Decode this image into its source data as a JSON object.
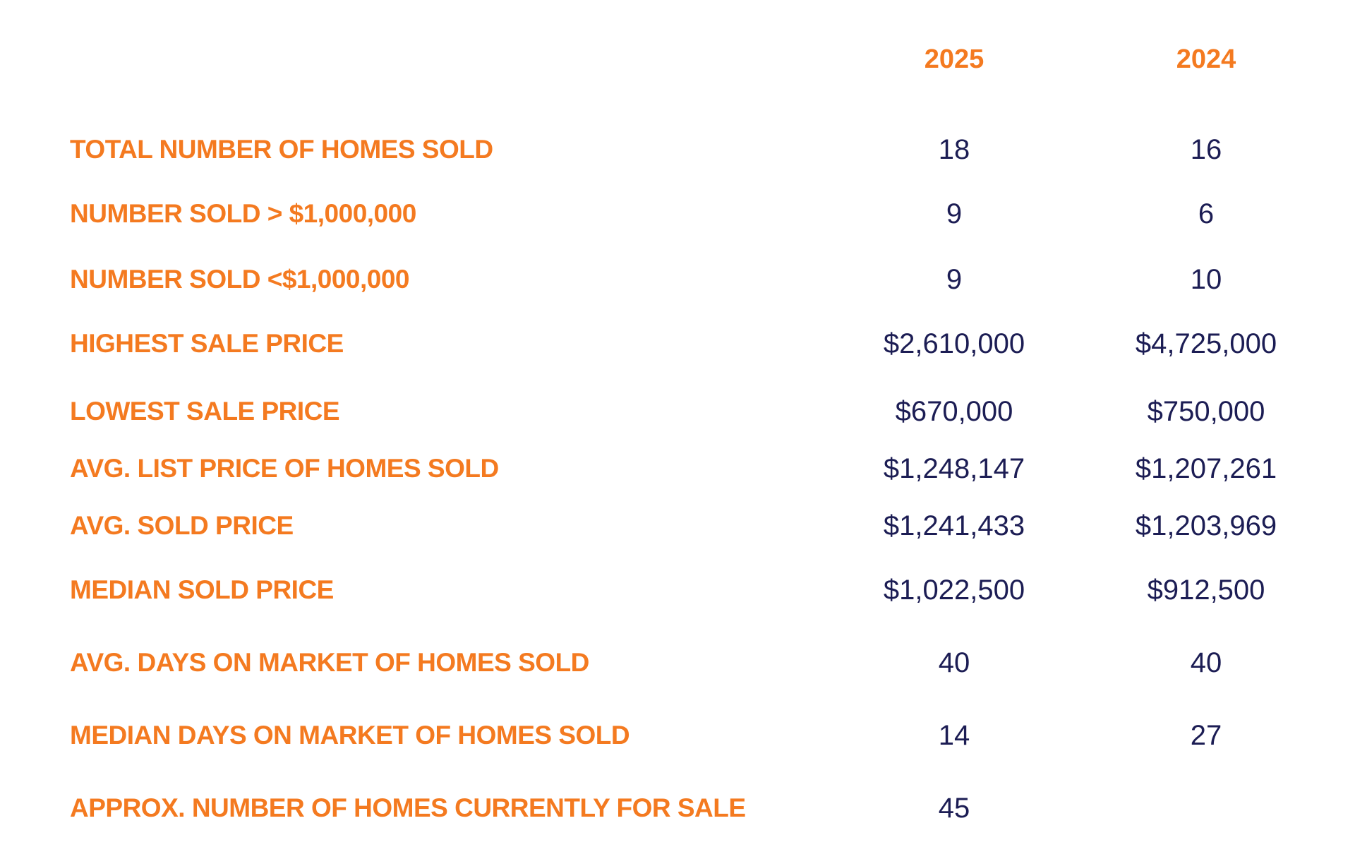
{
  "columns": {
    "year_2025": "2025",
    "year_2024": "2024"
  },
  "rows": [
    {
      "label": "TOTAL NUMBER OF HOMES SOLD",
      "v2025": "18",
      "v2024": "16"
    },
    {
      "label": "NUMBER SOLD > $1,000,000",
      "v2025": "9",
      "v2024": "6"
    },
    {
      "label": "NUMBER SOLD <$1,000,000",
      "v2025": "9",
      "v2024": "10"
    },
    {
      "label": "HIGHEST SALE PRICE",
      "v2025": "$2,610,000",
      "v2024": "$4,725,000"
    },
    {
      "label": "LOWEST SALE PRICE",
      "v2025": "$670,000",
      "v2024": "$750,000"
    },
    {
      "label": "AVG. LIST PRICE OF HOMES SOLD",
      "v2025": "$1,248,147",
      "v2024": "$1,207,261"
    },
    {
      "label": "AVG. SOLD PRICE",
      "v2025": "$1,241,433",
      "v2024": "$1,203,969"
    },
    {
      "label": "MEDIAN SOLD PRICE",
      "v2025": "$1,022,500",
      "v2024": "$912,500"
    },
    {
      "label": "AVG. DAYS ON MARKET OF HOMES SOLD",
      "v2025": "40",
      "v2024": "40"
    },
    {
      "label": "MEDIAN DAYS ON MARKET OF HOMES SOLD",
      "v2025": "14",
      "v2024": "27"
    },
    {
      "label": "APPROX. NUMBER OF HOMES CURRENTLY FOR SALE",
      "v2025": "45",
      "v2024": ""
    }
  ],
  "colors": {
    "label_orange": "#f47a20",
    "value_navy": "#1c1d54",
    "background": "#ffffff"
  }
}
